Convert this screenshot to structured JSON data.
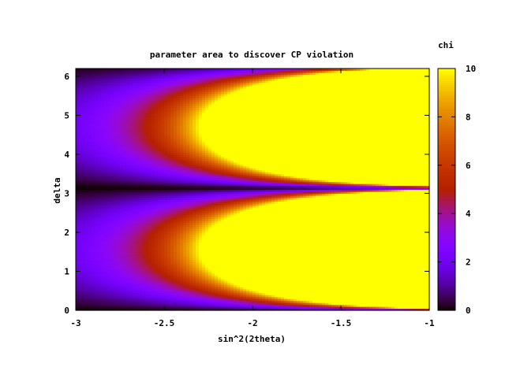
{
  "chart_data": {
    "type": "heatmap",
    "title": "parameter area to discover CP violation",
    "xlabel": "sin^2(2theta)",
    "ylabel": "delta",
    "colorbar_label": "chi",
    "xlim": [
      -3,
      -1
    ],
    "ylim": [
      0,
      6.2
    ],
    "zlim": [
      0,
      10
    ],
    "colormap": "gnuplot pm3d rgbformulae 7,5,15 (black-purple-red-orange-yellow)",
    "x_ticks": [
      -3,
      -2.5,
      -2,
      -1.5,
      -1
    ],
    "x_tick_labels": [
      "-3",
      "-2.5",
      "-2",
      "-1.5",
      "-1"
    ],
    "y_ticks": [
      0,
      1,
      2,
      3,
      4,
      5,
      6
    ],
    "y_tick_labels": [
      "0",
      "1",
      "2",
      "3",
      "4",
      "5",
      "6"
    ],
    "z_ticks": [
      0,
      2,
      4,
      6,
      8,
      10
    ],
    "z_tick_labels": [
      "0",
      "2",
      "4",
      "6",
      "8",
      "10"
    ],
    "function": "chi = min(10, 10^(x+3.3) * |sin(delta)|)",
    "grid": false,
    "colorbar_position": "right"
  }
}
